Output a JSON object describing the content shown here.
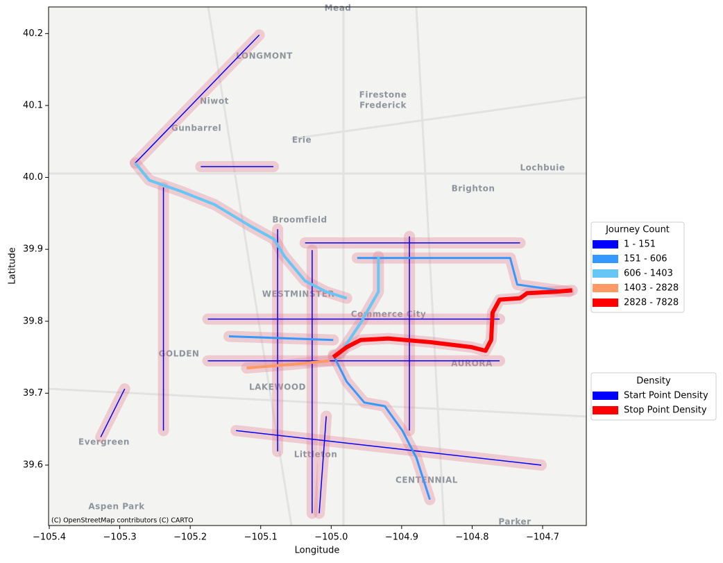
{
  "chart_data": {
    "type": "map",
    "x_label": "Longitude",
    "y_label": "Latitude",
    "xlim": [
      -105.401,
      -104.638
    ],
    "ylim": [
      39.516,
      40.237
    ],
    "xticks": [
      {
        "value": -105.4,
        "label": "−105.4"
      },
      {
        "value": -105.3,
        "label": "−105.3"
      },
      {
        "value": -105.2,
        "label": "−105.2"
      },
      {
        "value": -105.1,
        "label": "−105.1"
      },
      {
        "value": -105.0,
        "label": "−105.0"
      },
      {
        "value": -104.9,
        "label": "−104.9"
      },
      {
        "value": -104.8,
        "label": "−104.8"
      },
      {
        "value": -104.7,
        "label": "−104.7"
      }
    ],
    "yticks": [
      39.6,
      39.7,
      39.8,
      39.9,
      {
        "value": 40.0,
        "label": "40.0"
      },
      40.1,
      40.2
    ],
    "attribution": "(C) OpenStreetMap contributors (C) CARTO",
    "places": [
      "Mead",
      "LONGMONT",
      "Niwot",
      "Firestone",
      "Frederick",
      "Gunbarrel",
      "Erie",
      "Lochbuie",
      "Brighton",
      "Broomfield",
      "WESTMINSTER",
      "Commerce City",
      "GOLDEN",
      "LAKEWOOD",
      "AURORA",
      "Evergreen",
      "Littleton",
      "CENTENNIAL",
      "Aspen Park",
      "Parker"
    ],
    "journey_legend": {
      "title": "Journey Count",
      "entries": [
        {
          "name": "1 - 151",
          "color": "#0000ff"
        },
        {
          "name": "151 - 606",
          "color": "#3399ff"
        },
        {
          "name": "606 - 1403",
          "color": "#66c6f5"
        },
        {
          "name": "1403 - 2828",
          "color": "#ff9966"
        },
        {
          "name": "2828 - 7828",
          "color": "#ff0000"
        }
      ]
    },
    "density_legend": {
      "title": "Density",
      "entries": [
        {
          "name": "Start Point Density",
          "color": "#0000ff"
        },
        {
          "name": "Stop Point Density",
          "color": "#ff0000"
        }
      ]
    },
    "routes": [
      {
        "level": 0,
        "lon": [
          -105.278,
          -105.102
        ],
        "lat": [
          40.02,
          40.198
        ]
      },
      {
        "level": 0,
        "lon": [
          -105.076,
          -105.076
        ],
        "lat": [
          39.928,
          39.619
        ]
      },
      {
        "level": 0,
        "lon": [
          -104.889,
          -104.889
        ],
        "lat": [
          39.918,
          39.648
        ]
      },
      {
        "level": 0,
        "lon": [
          -105.027,
          -105.027
        ],
        "lat": [
          39.899,
          39.533
        ]
      },
      {
        "level": 0,
        "lon": [
          -105.175,
          -104.761
        ],
        "lat": [
          39.803,
          39.803
        ]
      },
      {
        "level": 0,
        "lon": [
          -105.175,
          -104.761
        ],
        "lat": [
          39.745,
          39.745
        ]
      },
      {
        "level": 0,
        "lon": [
          -105.037,
          -104.732
        ],
        "lat": [
          39.909,
          39.909
        ]
      },
      {
        "level": 0,
        "lon": [
          -105.185,
          -105.082
        ],
        "lat": [
          40.015,
          40.015
        ]
      },
      {
        "level": 0,
        "lon": [
          -105.238,
          -105.238
        ],
        "lat": [
          39.986,
          39.648
        ]
      },
      {
        "level": 0,
        "lon": [
          -105.135,
          -104.702
        ],
        "lat": [
          39.648,
          39.6
        ]
      },
      {
        "level": 0,
        "lon": [
          -105.293,
          -105.327
        ],
        "lat": [
          39.706,
          39.639
        ]
      },
      {
        "level": 0,
        "lon": [
          -105.007,
          -105.017
        ],
        "lat": [
          39.668,
          39.533
        ]
      },
      {
        "level": 1,
        "lon": [
          -104.997,
          -104.978,
          -104.953,
          -104.924,
          -104.899,
          -104.879,
          -104.86
        ],
        "lat": [
          39.753,
          39.716,
          39.687,
          39.682,
          39.648,
          39.61,
          39.552
        ]
      },
      {
        "level": 1,
        "lon": [
          -104.963,
          -104.746,
          -104.736,
          -104.663
        ],
        "lat": [
          39.888,
          39.888,
          39.851,
          39.841
        ]
      },
      {
        "level": 1,
        "lon": [
          -105.145,
          -104.997
        ],
        "lat": [
          39.779,
          39.774
        ]
      },
      {
        "level": 2,
        "lon": [
          -105.278,
          -105.258,
          -105.214,
          -105.165,
          -105.116,
          -105.081,
          -105.066,
          -105.037,
          -105.007,
          -104.978
        ],
        "lat": [
          40.02,
          39.996,
          39.981,
          39.962,
          39.933,
          39.914,
          39.89,
          39.856,
          39.841,
          39.832
        ]
      },
      {
        "level": 2,
        "lon": [
          -104.933,
          -104.933,
          -104.958,
          -104.988
        ],
        "lat": [
          39.89,
          39.841,
          39.798,
          39.754
        ]
      },
      {
        "level": 3,
        "lon": [
          -105.12,
          -105.056,
          -105.002
        ],
        "lat": [
          39.735,
          39.74,
          39.745
        ]
      },
      {
        "level": 4,
        "lon": [
          -104.997,
          -104.978,
          -104.958,
          -104.919,
          -104.86,
          -104.801,
          -104.781,
          -104.773,
          -104.771,
          -104.761,
          -104.732,
          -104.722,
          -104.682,
          -104.658
        ],
        "lat": [
          39.75,
          39.764,
          39.774,
          39.776,
          39.771,
          39.764,
          39.759,
          39.774,
          39.812,
          39.83,
          39.832,
          39.839,
          39.841,
          39.843
        ]
      }
    ]
  }
}
